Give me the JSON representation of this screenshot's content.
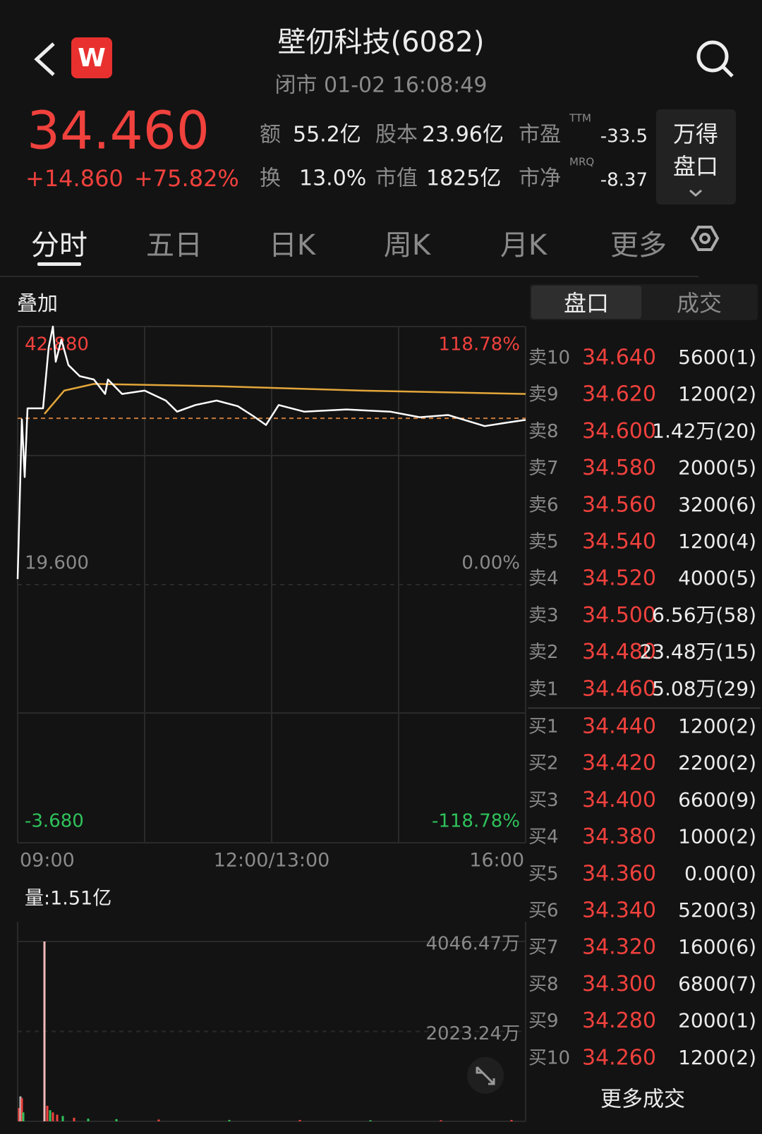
{
  "header": {
    "logo": "W",
    "title": "壁仞科技(6082)",
    "status": "闭市 01-02 16:08:49"
  },
  "quote": {
    "price": "34.460",
    "change": "+14.860",
    "change_pct": "+75.82%",
    "stats": [
      {
        "label": "额",
        "value": "55.2亿"
      },
      {
        "label": "股本",
        "value": "23.96亿"
      },
      {
        "label": "市盈",
        "sup": "TTM",
        "value": "-33.5"
      },
      {
        "label": "换",
        "value": "13.0%"
      },
      {
        "label": "市值",
        "value": "1825亿"
      },
      {
        "label": "市净",
        "sup": "MRQ",
        "value": "-8.37"
      }
    ],
    "button": [
      "万得",
      "盘口"
    ]
  },
  "tabs": [
    "分时",
    "五日",
    "日K",
    "周K",
    "月K",
    "更多"
  ],
  "chart_data": [
    {
      "type": "line",
      "label": "叠加",
      "series": [
        {
          "color": "#ffffff",
          "x": [
            0,
            3,
            5,
            7,
            18,
            22,
            25,
            27,
            31,
            36,
            44,
            54,
            62,
            64,
            74,
            90,
            105,
            113,
            126,
            141,
            156,
            167,
            176,
            185,
            203,
            233,
            264,
            285,
            305,
            331,
            346,
            360
          ],
          "values": [
            20.1,
            34.5,
            29.3,
            35.5,
            35.5,
            41.0,
            42.88,
            39.7,
            41.7,
            39.4,
            38.4,
            38.1,
            36.8,
            38.1,
            36.8,
            37.1,
            36.2,
            35.2,
            35.8,
            36.2,
            35.7,
            34.8,
            34.0,
            35.8,
            35.2,
            35.4,
            35.2,
            34.7,
            34.9,
            33.9,
            34.2,
            34.46
          ]
        },
        {
          "color": "#e3a63a",
          "x": [
            19,
            33,
            54,
            141,
            244,
            360
          ],
          "values": [
            35.0,
            37.1,
            37.7,
            37.5,
            37.1,
            36.8
          ]
        }
      ],
      "reference_line": 34.6,
      "xlim": [
        0,
        360
      ],
      "xticks": [
        {
          "value": 0,
          "label": "09:00"
        },
        {
          "value": 180,
          "label": "12:00/13:00"
        },
        {
          "value": 360,
          "label": "16:00"
        }
      ],
      "ylim": [
        -3.68,
        42.88
      ],
      "yticks": [
        {
          "value": 42.88,
          "label": "42.880"
        },
        {
          "value": 19.6,
          "label": "19.600"
        },
        {
          "value": -3.68,
          "label": "-3.680"
        }
      ],
      "y2lim": [
        -118.78,
        118.78
      ],
      "y2ticks": [
        {
          "value": 118.78,
          "label": "118.78%"
        },
        {
          "value": 0,
          "label": "0.00%"
        },
        {
          "value": -118.78,
          "label": "-118.78%"
        }
      ],
      "grid": true
    },
    {
      "type": "bar",
      "label": "量:1.51亿",
      "x": [
        1,
        2,
        3,
        4,
        19,
        21,
        23,
        25,
        28,
        32,
        40,
        50,
        70,
        100,
        150,
        200,
        250,
        300,
        350
      ],
      "values": [
        300,
        560,
        520,
        200,
        4046.47,
        350,
        250,
        200,
        150,
        120,
        80,
        60,
        50,
        40,
        30,
        30,
        25,
        25,
        30
      ],
      "colors": [
        "#f0413d",
        "#bbbbbb",
        "#f0413d",
        "#2fc25b",
        "#f3b8b8",
        "#f0413d",
        "#2fc25b",
        "#f0413d",
        "#f0413d",
        "#2fc25b",
        "#f0413d",
        "#2fc25b",
        "#2fc25b",
        "#f0413d",
        "#2fc25b",
        "#f0413d",
        "#2fc25b",
        "#f0413d",
        "#f0413d"
      ],
      "xlim": [
        0,
        360
      ],
      "ylim": [
        0,
        4046.47
      ],
      "yticks": [
        {
          "value": 2023.24,
          "label": "2023.24万"
        },
        {
          "value": 4046.47,
          "label": "4046.47万"
        }
      ]
    }
  ],
  "order_book": {
    "tabs": [
      "盘口",
      "成交"
    ],
    "asks": [
      [
        "卖10",
        "34.640",
        "5600(1)"
      ],
      [
        "卖9",
        "34.620",
        "1200(2)"
      ],
      [
        "卖8",
        "34.600",
        "1.42万(20)"
      ],
      [
        "卖7",
        "34.580",
        "2000(5)"
      ],
      [
        "卖6",
        "34.560",
        "3200(6)"
      ],
      [
        "卖5",
        "34.540",
        "1200(4)"
      ],
      [
        "卖4",
        "34.520",
        "4000(5)"
      ],
      [
        "卖3",
        "34.500",
        "6.56万(58)"
      ],
      [
        "卖2",
        "34.480",
        "23.48万(15)"
      ],
      [
        "卖1",
        "34.460",
        "5.08万(29)"
      ]
    ],
    "bids": [
      [
        "买1",
        "34.440",
        "1200(2)"
      ],
      [
        "买2",
        "34.420",
        "2200(2)"
      ],
      [
        "买3",
        "34.400",
        "6600(9)"
      ],
      [
        "买4",
        "34.380",
        "1000(2)"
      ],
      [
        "买5",
        "34.360",
        "0.00(0)"
      ],
      [
        "买6",
        "34.340",
        "5200(3)"
      ],
      [
        "买7",
        "34.320",
        "1600(6)"
      ],
      [
        "买8",
        "34.300",
        "6800(7)"
      ],
      [
        "买9",
        "34.280",
        "2000(1)"
      ],
      [
        "买10",
        "34.260",
        "1200(2)"
      ]
    ],
    "more": "更多成交"
  }
}
